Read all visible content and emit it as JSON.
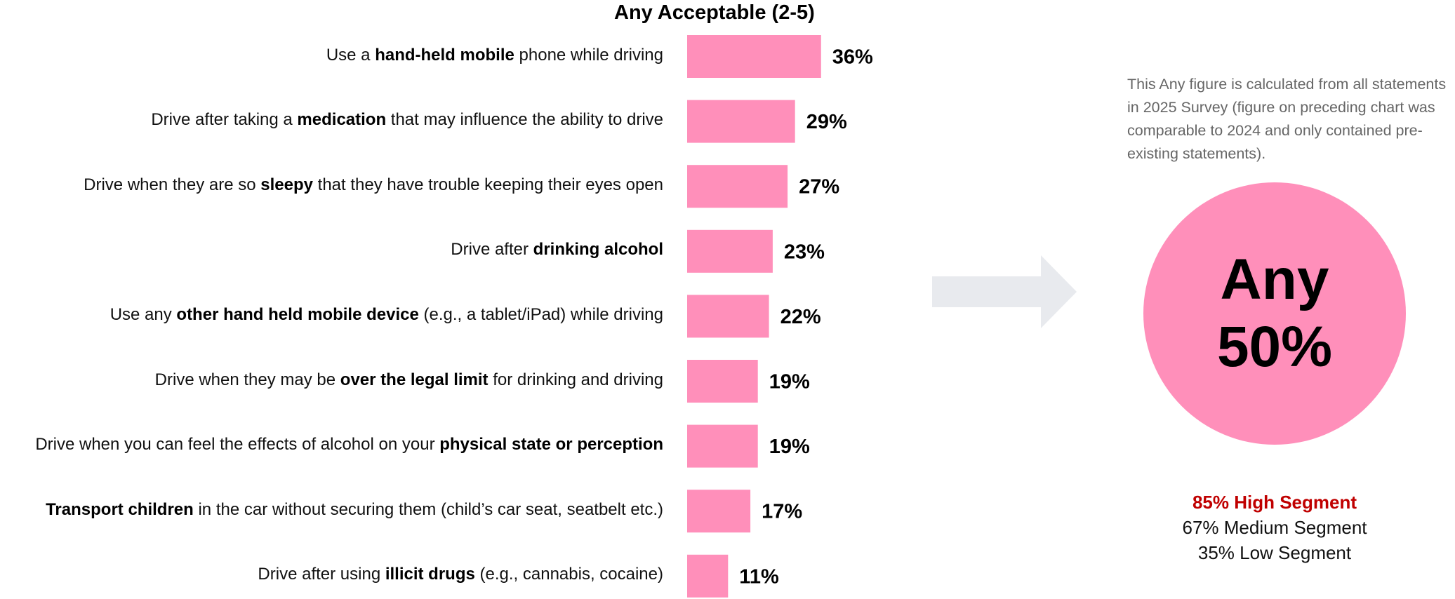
{
  "chart_data": {
    "type": "bar",
    "orientation": "horizontal",
    "title": "Any Acceptable (2-5)",
    "categories": [
      [
        {
          "t": "Use a "
        },
        {
          "t": "hand-held mobile",
          "b": true
        },
        {
          "t": " phone while driving"
        }
      ],
      [
        {
          "t": "Drive after taking a "
        },
        {
          "t": "medication",
          "b": true
        },
        {
          "t": " that may influence the ability to drive"
        }
      ],
      [
        {
          "t": "Drive when they are so "
        },
        {
          "t": "sleepy",
          "b": true
        },
        {
          "t": " that they have trouble keeping their eyes open"
        }
      ],
      [
        {
          "t": "Drive after "
        },
        {
          "t": "drinking alcohol",
          "b": true
        }
      ],
      [
        {
          "t": "Use any "
        },
        {
          "t": "other hand held mobile device",
          "b": true
        },
        {
          "t": " (e.g., a tablet/iPad) while driving"
        }
      ],
      [
        {
          "t": "Drive when they may be "
        },
        {
          "t": "over the legal limit",
          "b": true
        },
        {
          "t": " for drinking and driving"
        }
      ],
      [
        {
          "t": "Drive when you can feel the effects of alcohol on your "
        },
        {
          "t": "physical state or perception",
          "b": true
        }
      ],
      [
        {
          "t": "Transport children",
          "b": true
        },
        {
          "t": " in the car without securing them (child’s car seat, seatbelt etc.)"
        }
      ],
      [
        {
          "t": "Drive after using "
        },
        {
          "t": "illicit drugs",
          "b": true
        },
        {
          "t": " (e.g., cannabis, cocaine)"
        }
      ]
    ],
    "values": [
      36,
      29,
      27,
      23,
      22,
      19,
      19,
      17,
      11
    ],
    "value_labels": [
      "36%",
      "29%",
      "27%",
      "23%",
      "22%",
      "19%",
      "19%",
      "17%",
      "11%"
    ],
    "bar_color": "#ff8fba",
    "xlim": [
      0,
      100
    ],
    "grid": false,
    "legend": "none"
  },
  "note": "This Any figure is calculated from all statements in 2025 Survey (figure on preceding chart was comparable to 2024 and only contained pre-existing statements).",
  "summary": {
    "label": "Any",
    "value": "50%",
    "circle_color": "#ff8fba"
  },
  "segments": {
    "high": "85% High Segment",
    "medium": "67% Medium Segment",
    "low": "35% Low Segment",
    "high_color": "#c00000"
  },
  "arrow_color": "#e8eaee"
}
